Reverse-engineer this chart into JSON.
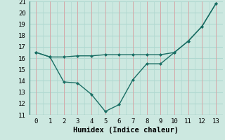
{
  "x": [
    0,
    1,
    2,
    3,
    4,
    5,
    6,
    7,
    8,
    9,
    10,
    11,
    12,
    13
  ],
  "line1": [
    16.5,
    16.1,
    16.1,
    16.2,
    16.2,
    16.3,
    16.3,
    16.3,
    16.3,
    16.3,
    16.5,
    17.5,
    18.8,
    20.8
  ],
  "line2": [
    16.5,
    16.1,
    13.9,
    13.8,
    12.8,
    11.3,
    11.9,
    14.1,
    15.5,
    15.5,
    16.5,
    17.5,
    18.8,
    20.8
  ],
  "line_color": "#1a6e64",
  "bg_color": "#cce8e0",
  "grid_color_white": "#b0d8d0",
  "grid_color_pink": "#d4a8a8",
  "xlabel": "Humidex (Indice chaleur)",
  "xlim": [
    -0.5,
    13.5
  ],
  "ylim": [
    11,
    21
  ],
  "yticks": [
    11,
    12,
    13,
    14,
    15,
    16,
    17,
    18,
    19,
    20,
    21
  ],
  "xticks": [
    0,
    1,
    2,
    3,
    4,
    5,
    6,
    7,
    8,
    9,
    10,
    11,
    12,
    13
  ],
  "tick_fontsize": 6.5,
  "label_fontsize": 7.5
}
